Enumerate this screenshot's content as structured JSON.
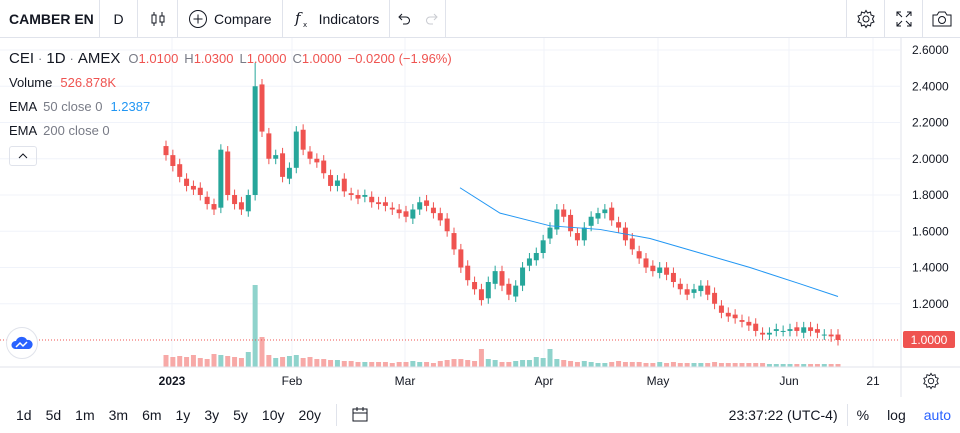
{
  "toolbar": {
    "symbol": "CAMBER EN",
    "interval": "D",
    "compare_label": "Compare",
    "indicators_label": "Indicators"
  },
  "legend": {
    "ticker": "CEI",
    "interval": "1D",
    "exchange": "AMEX",
    "o_label": "O",
    "o_value": "1.0100",
    "h_label": "H",
    "h_value": "1.0300",
    "l_label": "L",
    "l_value": "1.0000",
    "c_label": "C",
    "c_value": "1.0000",
    "change": "−0.0200 (−1.96%)",
    "volume_label": "Volume",
    "volume_value": "526.878K",
    "ema50_label": "EMA",
    "ema50_params": "50 close 0",
    "ema50_value": "1.2387",
    "ema200_label": "EMA",
    "ema200_params": "200 close 0"
  },
  "price_axis": {
    "labels": [
      "2.6000",
      "2.4000",
      "2.2000",
      "2.0000",
      "1.8000",
      "1.6000",
      "1.4000",
      "1.2000"
    ],
    "last_price": "1.0000"
  },
  "time_axis": {
    "labels": [
      "2023",
      "Feb",
      "Mar",
      "Apr",
      "May",
      "Jun",
      "21"
    ]
  },
  "bottombar": {
    "ranges": [
      "1d",
      "5d",
      "1m",
      "3m",
      "6m",
      "1y",
      "3y",
      "5y",
      "10y",
      "20y"
    ],
    "clock": "23:37:22 (UTC-4)",
    "percent": "%",
    "log": "log",
    "auto": "auto"
  },
  "colors": {
    "up": "#26a69a",
    "down": "#ef5350",
    "ema50": "#2196f3"
  },
  "chart_data": {
    "type": "candlestick",
    "ylim": [
      0.9,
      2.65
    ],
    "x_tick_labels": [
      "2023",
      "Feb",
      "Mar",
      "Apr",
      "May",
      "Jun",
      "21"
    ],
    "y_tick_labels": [
      "1.2000",
      "1.4000",
      "1.6000",
      "1.8000",
      "2.0000",
      "2.2000",
      "2.4000",
      "2.6000"
    ],
    "closes": [
      2.02,
      1.96,
      1.9,
      1.85,
      1.83,
      1.8,
      1.75,
      1.72,
      2.05,
      1.8,
      1.75,
      1.72,
      1.8,
      2.4,
      2.15,
      2.0,
      2.02,
      1.9,
      1.95,
      2.15,
      2.05,
      2.0,
      1.98,
      1.92,
      1.85,
      1.88,
      1.82,
      1.8,
      1.78,
      1.8,
      1.76,
      1.75,
      1.74,
      1.72,
      1.7,
      1.68,
      1.72,
      1.76,
      1.74,
      1.7,
      1.66,
      1.6,
      1.5,
      1.4,
      1.33,
      1.28,
      1.22,
      1.32,
      1.38,
      1.3,
      1.25,
      1.3,
      1.4,
      1.45,
      1.48,
      1.55,
      1.62,
      1.72,
      1.68,
      1.6,
      1.55,
      1.62,
      1.68,
      1.7,
      1.72,
      1.66,
      1.62,
      1.55,
      1.5,
      1.45,
      1.4,
      1.38,
      1.4,
      1.36,
      1.32,
      1.28,
      1.25,
      1.28,
      1.3,
      1.25,
      1.2,
      1.15,
      1.13,
      1.12,
      1.1,
      1.08,
      1.05,
      1.03,
      1.04,
      1.06,
      1.05,
      1.06,
      1.05,
      1.07,
      1.05,
      1.04,
      1.03,
      1.02,
      1.0
    ],
    "ema50": [
      [
        460,
        1.84
      ],
      [
        500,
        1.7
      ],
      [
        550,
        1.63
      ],
      [
        600,
        1.61
      ],
      [
        650,
        1.56
      ],
      [
        700,
        1.48
      ],
      [
        750,
        1.4
      ],
      [
        800,
        1.31
      ],
      [
        838,
        1.24
      ]
    ],
    "volume_last": "526.878K"
  }
}
